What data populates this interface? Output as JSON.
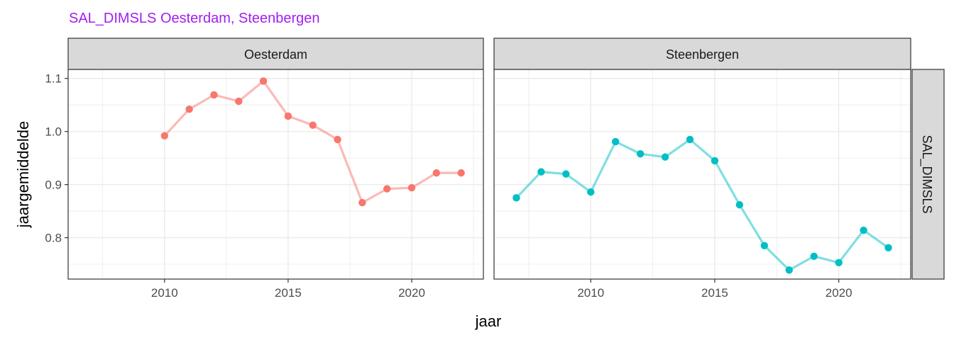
{
  "title": "SAL_DIMSLS Oesterdam, Steenbergen",
  "colors": {
    "title": "#a020f0",
    "series_1": "#f8766d",
    "series_2": "#00bfc4",
    "strip_fill": "#d9d9d9",
    "grid": "#ebebeb",
    "border": "#333333"
  },
  "chart_data": {
    "type": "line",
    "title": "SAL_DIMSLS Oesterdam, Steenbergen",
    "xlabel": "jaar",
    "ylabel": "jaargemiddelde",
    "xlim": [
      2006.1,
      2022.9
    ],
    "ylim": [
      0.722,
      1.117
    ],
    "x_ticks": [
      2010,
      2015,
      2020
    ],
    "y_ticks": [
      0.8,
      0.9,
      1.0,
      1.1
    ],
    "x_tick_labels": [
      "2010",
      "2015",
      "2020"
    ],
    "y_tick_labels": [
      "0.8",
      "0.9",
      "1.0",
      "1.1"
    ],
    "row_strip": "SAL_DIMSLS",
    "grid": true,
    "legend": "none",
    "panels": [
      {
        "strip": "Oesterdam",
        "color": "#f8766d",
        "x": [
          2010,
          2011,
          2012,
          2013,
          2014,
          2015,
          2016,
          2017,
          2018,
          2019,
          2020,
          2021,
          2022
        ],
        "y": [
          0.992,
          1.042,
          1.069,
          1.057,
          1.095,
          1.029,
          1.012,
          0.985,
          0.866,
          0.892,
          0.894,
          0.922,
          0.922
        ]
      },
      {
        "strip": "Steenbergen",
        "color": "#00bfc4",
        "x": [
          2007,
          2008,
          2009,
          2010,
          2011,
          2012,
          2013,
          2014,
          2015,
          2016,
          2017,
          2018,
          2019,
          2020,
          2021,
          2022
        ],
        "y": [
          0.875,
          0.924,
          0.92,
          0.886,
          0.981,
          0.958,
          0.952,
          0.985,
          0.945,
          0.862,
          0.785,
          0.739,
          0.765,
          0.753,
          0.814,
          0.781
        ]
      }
    ]
  }
}
